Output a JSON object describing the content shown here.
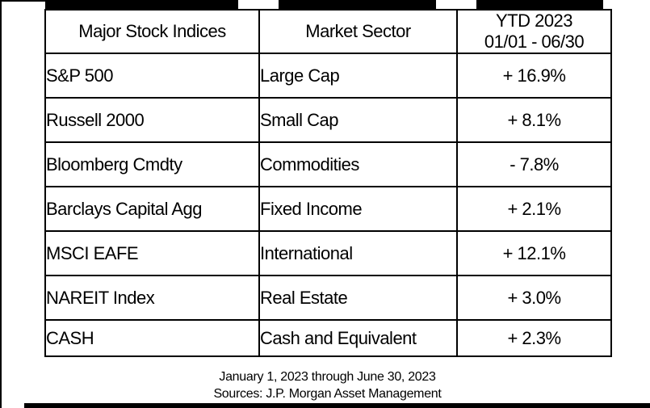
{
  "table": {
    "columns": {
      "col1_header": "Major Stock Indices",
      "col2_header": "Market Sector",
      "col3_header_line1": "YTD 2023",
      "col3_header_line2": "01/01 - 06/30"
    },
    "rows": [
      {
        "index": "S&P 500",
        "sector": "Large Cap",
        "ytd": "+ 16.9%"
      },
      {
        "index": "Russell 2000",
        "sector": "Small Cap",
        "ytd": "+ 8.1%"
      },
      {
        "index": "Bloomberg Cmdty",
        "sector": "Commodities",
        "ytd": "- 7.8%"
      },
      {
        "index": "Barclays Capital Agg",
        "sector": "Fixed Income",
        "ytd": "+ 2.1%"
      },
      {
        "index": "MSCI EAFE",
        "sector": "International",
        "ytd": "+ 12.1%"
      },
      {
        "index": "NAREIT Index",
        "sector": "Real Estate",
        "ytd": "+ 3.0%"
      },
      {
        "index": "CASH",
        "sector": "Cash and Equivalent",
        "ytd": "+ 2.3%"
      }
    ]
  },
  "footer": {
    "line1": "January 1, 2023 through June 30, 2023",
    "line2": "Sources: J.P. Morgan Asset Management"
  },
  "colors": {
    "text": "#000000",
    "background": "#ffffff",
    "border": "#000000",
    "band": "#000000"
  }
}
